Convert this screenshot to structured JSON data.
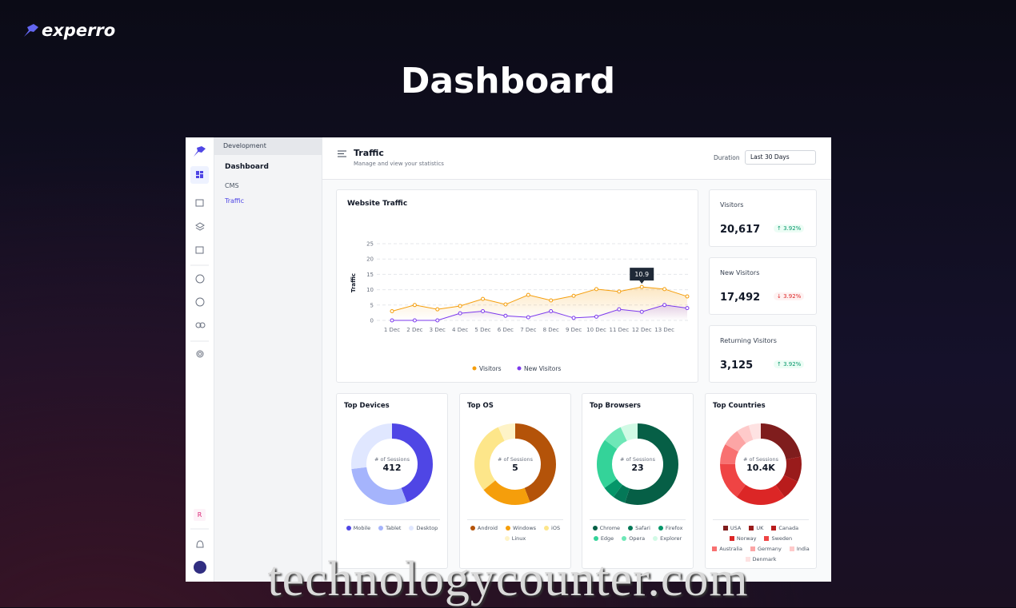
{
  "brand": "experro",
  "page_title": "Dashboard",
  "sidebar": {
    "avatar": "R"
  },
  "nav": {
    "workspace": "Development",
    "items": [
      "Dashboard",
      "CMS",
      "Traffic"
    ]
  },
  "header": {
    "title": "Traffic",
    "subtitle": "Manage and view your statistics",
    "duration_label": "Duration",
    "duration_value": "Last 30 Days"
  },
  "traffic_chart": {
    "type": "line",
    "title": "Website Traffic",
    "y_label": "Traffic",
    "categories": [
      "1 Dec",
      "2 Dec",
      "3 Dec",
      "4 Dec",
      "5 Dec",
      "6 Dec",
      "7 Dec",
      "8 Dec",
      "9 Dec",
      "10 Dec",
      "11 Dec",
      "12 Dec",
      "13 Dec",
      null
    ],
    "series": [
      {
        "name": "Visitors",
        "color": "#f59e0b",
        "values": [
          3,
          5,
          3.6,
          4.7,
          7,
          5.2,
          8.3,
          6.5,
          8,
          10.2,
          9.4,
          10.9,
          10.2,
          7.8
        ]
      },
      {
        "name": "New Visitors",
        "color": "#7c3aed",
        "values": [
          0,
          0,
          0,
          2.3,
          3,
          1.5,
          1,
          3,
          0.8,
          1.2,
          3.6,
          2.8,
          5,
          4
        ]
      }
    ],
    "ylim": [
      0,
      25
    ],
    "yticks": [
      0,
      5,
      10,
      15,
      20,
      25
    ],
    "grid": true
  },
  "stats": [
    {
      "label": "Visitors",
      "value": "20,617",
      "change": "↑ 3.92%",
      "trend": "up"
    },
    {
      "label": "New Visitors",
      "value": "17,492",
      "change": "↓ 3.92%",
      "trend": "down"
    },
    {
      "label": "Returning Visitors",
      "value": "3,125",
      "change": "↑ 3.92%",
      "trend": "up"
    }
  ],
  "donut_charts": [
    {
      "type": "donut",
      "title": "Top Devices",
      "center_label": "# of Sessions",
      "center_value": "412",
      "categories": [
        "Mobile",
        "Tablet",
        "Desktop"
      ],
      "values": [
        44,
        29,
        27
      ],
      "colors": [
        "#4f46e5",
        "#a5b4fc",
        "#e0e7ff"
      ]
    },
    {
      "type": "donut",
      "title": "Top OS",
      "center_label": "# of Sessions",
      "center_value": "5",
      "categories": [
        "Android",
        "Windows",
        "iOS",
        "Linux"
      ],
      "values": [
        44,
        20,
        29,
        7
      ],
      "colors": [
        "#b45309",
        "#f59e0b",
        "#fde68a",
        "#fef3c7"
      ]
    },
    {
      "type": "donut",
      "title": "Top Browsers",
      "center_label": "# of Sessions",
      "center_value": "23",
      "categories": [
        "Chrome",
        "Safari",
        "Firefox",
        "Edge",
        "Opera",
        "Explorer"
      ],
      "values": [
        55,
        5,
        5,
        20,
        8,
        7
      ],
      "colors": [
        "#065f46",
        "#047857",
        "#059669",
        "#34d399",
        "#6ee7b7",
        "#d1fae5"
      ]
    },
    {
      "type": "donut",
      "title": "Top Countries",
      "center_label": "# of Sessions",
      "center_value": "10.4K",
      "categories": [
        "USA",
        "UK",
        "Canada",
        "Norway",
        "Sweden",
        "Australia",
        "Germany",
        "India",
        "Denmark"
      ],
      "values": [
        22,
        10,
        8,
        20,
        15,
        8,
        7,
        5,
        5
      ],
      "colors": [
        "#7f1d1d",
        "#991b1b",
        "#b91c1c",
        "#dc2626",
        "#ef4444",
        "#f87171",
        "#fca5a5",
        "#fecaca",
        "#fee2e2"
      ]
    }
  ],
  "watermark": "technologycounter.com"
}
